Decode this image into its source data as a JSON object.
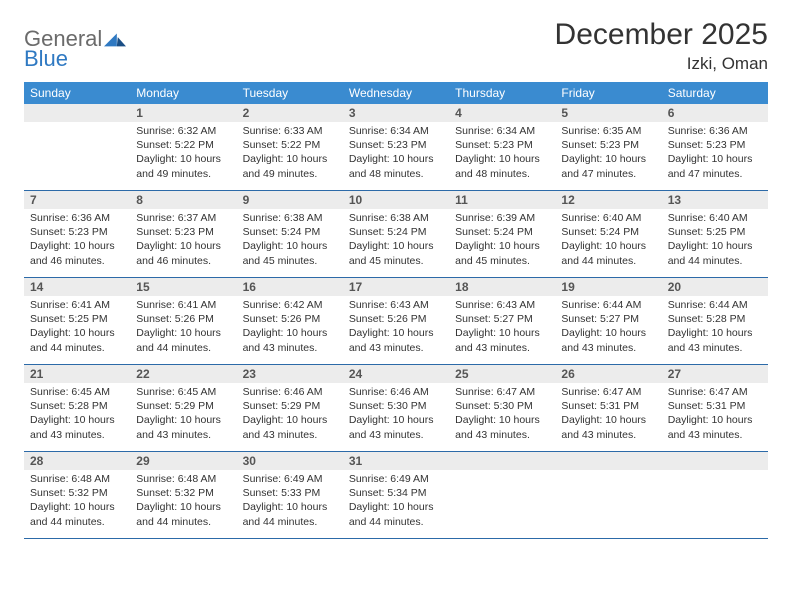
{
  "logo": {
    "general": "General",
    "blue": "Blue"
  },
  "title": "December 2025",
  "location": "Izki, Oman",
  "colors": {
    "header_bg": "#3a8bd0",
    "header_text": "#ffffff",
    "daynum_bg": "#ececec",
    "week_border": "#2c6aa8",
    "logo_gray": "#6b6b6b",
    "logo_blue": "#2f79c2"
  },
  "day_names": [
    "Sunday",
    "Monday",
    "Tuesday",
    "Wednesday",
    "Thursday",
    "Friday",
    "Saturday"
  ],
  "weeks": [
    [
      {
        "n": "",
        "sr": "",
        "ss": "",
        "dl": ""
      },
      {
        "n": "1",
        "sr": "Sunrise: 6:32 AM",
        "ss": "Sunset: 5:22 PM",
        "dl": "Daylight: 10 hours and 49 minutes."
      },
      {
        "n": "2",
        "sr": "Sunrise: 6:33 AM",
        "ss": "Sunset: 5:22 PM",
        "dl": "Daylight: 10 hours and 49 minutes."
      },
      {
        "n": "3",
        "sr": "Sunrise: 6:34 AM",
        "ss": "Sunset: 5:23 PM",
        "dl": "Daylight: 10 hours and 48 minutes."
      },
      {
        "n": "4",
        "sr": "Sunrise: 6:34 AM",
        "ss": "Sunset: 5:23 PM",
        "dl": "Daylight: 10 hours and 48 minutes."
      },
      {
        "n": "5",
        "sr": "Sunrise: 6:35 AM",
        "ss": "Sunset: 5:23 PM",
        "dl": "Daylight: 10 hours and 47 minutes."
      },
      {
        "n": "6",
        "sr": "Sunrise: 6:36 AM",
        "ss": "Sunset: 5:23 PM",
        "dl": "Daylight: 10 hours and 47 minutes."
      }
    ],
    [
      {
        "n": "7",
        "sr": "Sunrise: 6:36 AM",
        "ss": "Sunset: 5:23 PM",
        "dl": "Daylight: 10 hours and 46 minutes."
      },
      {
        "n": "8",
        "sr": "Sunrise: 6:37 AM",
        "ss": "Sunset: 5:23 PM",
        "dl": "Daylight: 10 hours and 46 minutes."
      },
      {
        "n": "9",
        "sr": "Sunrise: 6:38 AM",
        "ss": "Sunset: 5:24 PM",
        "dl": "Daylight: 10 hours and 45 minutes."
      },
      {
        "n": "10",
        "sr": "Sunrise: 6:38 AM",
        "ss": "Sunset: 5:24 PM",
        "dl": "Daylight: 10 hours and 45 minutes."
      },
      {
        "n": "11",
        "sr": "Sunrise: 6:39 AM",
        "ss": "Sunset: 5:24 PM",
        "dl": "Daylight: 10 hours and 45 minutes."
      },
      {
        "n": "12",
        "sr": "Sunrise: 6:40 AM",
        "ss": "Sunset: 5:24 PM",
        "dl": "Daylight: 10 hours and 44 minutes."
      },
      {
        "n": "13",
        "sr": "Sunrise: 6:40 AM",
        "ss": "Sunset: 5:25 PM",
        "dl": "Daylight: 10 hours and 44 minutes."
      }
    ],
    [
      {
        "n": "14",
        "sr": "Sunrise: 6:41 AM",
        "ss": "Sunset: 5:25 PM",
        "dl": "Daylight: 10 hours and 44 minutes."
      },
      {
        "n": "15",
        "sr": "Sunrise: 6:41 AM",
        "ss": "Sunset: 5:26 PM",
        "dl": "Daylight: 10 hours and 44 minutes."
      },
      {
        "n": "16",
        "sr": "Sunrise: 6:42 AM",
        "ss": "Sunset: 5:26 PM",
        "dl": "Daylight: 10 hours and 43 minutes."
      },
      {
        "n": "17",
        "sr": "Sunrise: 6:43 AM",
        "ss": "Sunset: 5:26 PM",
        "dl": "Daylight: 10 hours and 43 minutes."
      },
      {
        "n": "18",
        "sr": "Sunrise: 6:43 AM",
        "ss": "Sunset: 5:27 PM",
        "dl": "Daylight: 10 hours and 43 minutes."
      },
      {
        "n": "19",
        "sr": "Sunrise: 6:44 AM",
        "ss": "Sunset: 5:27 PM",
        "dl": "Daylight: 10 hours and 43 minutes."
      },
      {
        "n": "20",
        "sr": "Sunrise: 6:44 AM",
        "ss": "Sunset: 5:28 PM",
        "dl": "Daylight: 10 hours and 43 minutes."
      }
    ],
    [
      {
        "n": "21",
        "sr": "Sunrise: 6:45 AM",
        "ss": "Sunset: 5:28 PM",
        "dl": "Daylight: 10 hours and 43 minutes."
      },
      {
        "n": "22",
        "sr": "Sunrise: 6:45 AM",
        "ss": "Sunset: 5:29 PM",
        "dl": "Daylight: 10 hours and 43 minutes."
      },
      {
        "n": "23",
        "sr": "Sunrise: 6:46 AM",
        "ss": "Sunset: 5:29 PM",
        "dl": "Daylight: 10 hours and 43 minutes."
      },
      {
        "n": "24",
        "sr": "Sunrise: 6:46 AM",
        "ss": "Sunset: 5:30 PM",
        "dl": "Daylight: 10 hours and 43 minutes."
      },
      {
        "n": "25",
        "sr": "Sunrise: 6:47 AM",
        "ss": "Sunset: 5:30 PM",
        "dl": "Daylight: 10 hours and 43 minutes."
      },
      {
        "n": "26",
        "sr": "Sunrise: 6:47 AM",
        "ss": "Sunset: 5:31 PM",
        "dl": "Daylight: 10 hours and 43 minutes."
      },
      {
        "n": "27",
        "sr": "Sunrise: 6:47 AM",
        "ss": "Sunset: 5:31 PM",
        "dl": "Daylight: 10 hours and 43 minutes."
      }
    ],
    [
      {
        "n": "28",
        "sr": "Sunrise: 6:48 AM",
        "ss": "Sunset: 5:32 PM",
        "dl": "Daylight: 10 hours and 44 minutes."
      },
      {
        "n": "29",
        "sr": "Sunrise: 6:48 AM",
        "ss": "Sunset: 5:32 PM",
        "dl": "Daylight: 10 hours and 44 minutes."
      },
      {
        "n": "30",
        "sr": "Sunrise: 6:49 AM",
        "ss": "Sunset: 5:33 PM",
        "dl": "Daylight: 10 hours and 44 minutes."
      },
      {
        "n": "31",
        "sr": "Sunrise: 6:49 AM",
        "ss": "Sunset: 5:34 PM",
        "dl": "Daylight: 10 hours and 44 minutes."
      },
      {
        "n": "",
        "sr": "",
        "ss": "",
        "dl": ""
      },
      {
        "n": "",
        "sr": "",
        "ss": "",
        "dl": ""
      },
      {
        "n": "",
        "sr": "",
        "ss": "",
        "dl": ""
      }
    ]
  ]
}
